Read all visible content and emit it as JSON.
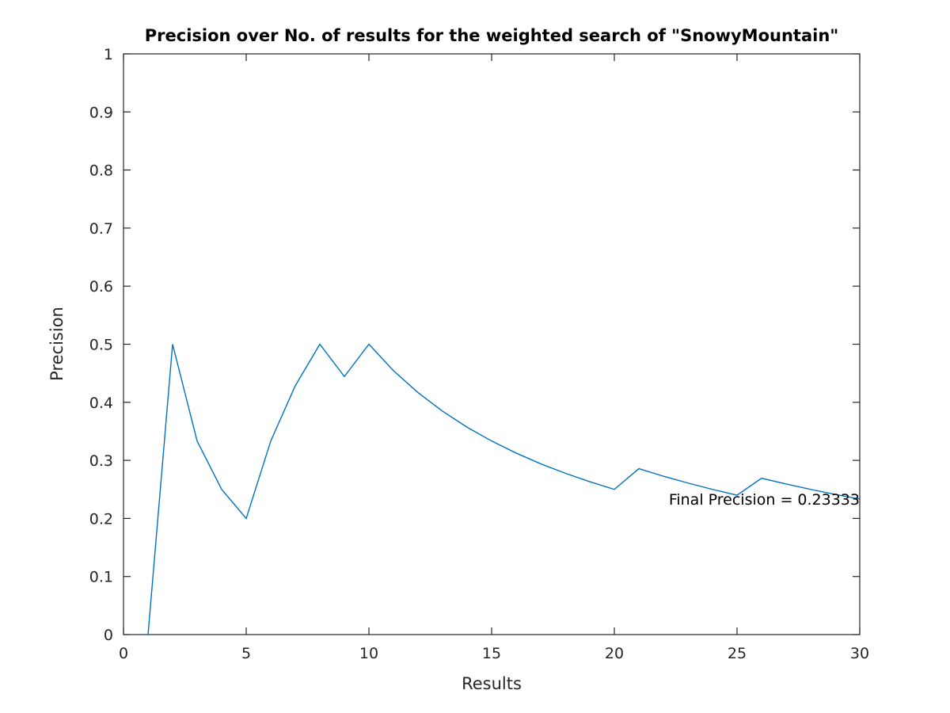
{
  "chart_data": {
    "type": "line",
    "title": "Precision over No. of results for the weighted search of \"SnowyMountain\"",
    "xlabel": "Results",
    "ylabel": "Precision",
    "xlim": [
      0,
      30
    ],
    "ylim": [
      0,
      1
    ],
    "xticks": [
      0,
      5,
      10,
      15,
      20,
      25,
      30
    ],
    "yticks": [
      0,
      0.1,
      0.2,
      0.3,
      0.4,
      0.5,
      0.6,
      0.7,
      0.8,
      0.9,
      1
    ],
    "grid": false,
    "series_color": "#0072BD",
    "x": [
      1,
      2,
      3,
      4,
      5,
      6,
      7,
      8,
      9,
      10,
      11,
      12,
      13,
      14,
      15,
      16,
      17,
      18,
      19,
      20,
      21,
      22,
      23,
      24,
      25,
      26,
      27,
      28,
      29,
      30
    ],
    "series": [
      {
        "values": [
          0,
          0.5,
          0.3333,
          0.25,
          0.2,
          0.3333,
          0.4286,
          0.5,
          0.4444,
          0.5,
          0.4545,
          0.4167,
          0.3846,
          0.3571,
          0.3333,
          0.3125,
          0.2941,
          0.2778,
          0.2632,
          0.25,
          0.2857,
          0.2727,
          0.2609,
          0.25,
          0.24,
          0.2692,
          0.2593,
          0.25,
          0.2414,
          0.2333
        ]
      }
    ],
    "annotation": {
      "text": "Final Precision = 0.23333",
      "x": 30,
      "y": 0.2333
    }
  }
}
